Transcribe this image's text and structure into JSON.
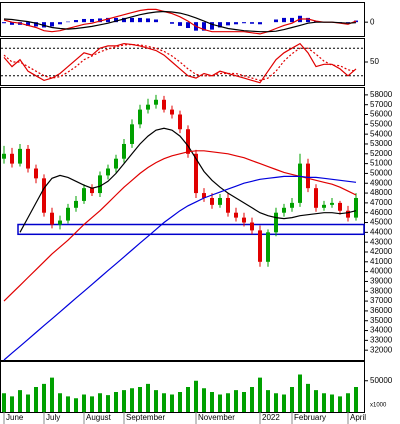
{
  "chart_data": [
    {
      "type": "macd",
      "ylim": [
        -1300,
        1800
      ],
      "yticks": [
        0
      ],
      "series": [
        {
          "name": "MACD",
          "color": "#e00000",
          "values": [
            200,
            0,
            -100,
            -300,
            -500,
            -800,
            -900,
            -800,
            -600,
            -400,
            -200,
            -100,
            100,
            300,
            500,
            700,
            900,
            1100,
            1200,
            1200,
            1000,
            800,
            500,
            100,
            -400,
            -700,
            -900,
            -900,
            -900,
            -900,
            -900,
            -1000,
            -1100,
            -900,
            -600,
            -300,
            -100,
            300,
            300,
            100,
            0,
            0,
            -100,
            -200,
            100
          ]
        },
        {
          "name": "Signal",
          "color": "#000000",
          "values": [
            300,
            250,
            150,
            50,
            -100,
            -300,
            -500,
            -600,
            -650,
            -600,
            -500,
            -400,
            -250,
            -100,
            100,
            300,
            500,
            700,
            850,
            950,
            1000,
            950,
            850,
            650,
            400,
            100,
            -200,
            -400,
            -600,
            -700,
            -800,
            -850,
            -900,
            -900,
            -850,
            -700,
            -500,
            -300,
            -100,
            0,
            0,
            0,
            -50,
            -100,
            -50
          ]
        }
      ],
      "histogram": {
        "color": "#0000cc",
        "values": [
          -100,
          -250,
          -250,
          -350,
          -400,
          -500,
          -400,
          -200,
          50,
          200,
          300,
          300,
          350,
          400,
          400,
          400,
          400,
          400,
          350,
          250,
          0,
          -150,
          -350,
          -550,
          -800,
          -800,
          -700,
          -500,
          -300,
          -200,
          -100,
          -150,
          -200,
          0,
          250,
          400,
          400,
          600,
          400,
          100,
          0,
          0,
          -50,
          -100,
          150
        ]
      }
    },
    {
      "type": "stochastic",
      "ylim": [
        0,
        100
      ],
      "yticks": [
        50
      ],
      "levels": [
        20,
        80
      ],
      "series": [
        {
          "name": "%K",
          "color": "#e00000",
          "values": [
            60,
            40,
            55,
            30,
            20,
            10,
            15,
            25,
            40,
            55,
            70,
            65,
            80,
            85,
            85,
            90,
            88,
            85,
            80,
            75,
            65,
            50,
            35,
            20,
            15,
            25,
            20,
            30,
            25,
            20,
            15,
            10,
            5,
            30,
            55,
            70,
            80,
            90,
            70,
            40,
            45,
            45,
            35,
            20,
            35
          ]
        },
        {
          "name": "%D",
          "color": "#e00000",
          "dashed": true,
          "values": [
            65,
            50,
            50,
            40,
            30,
            20,
            15,
            18,
            28,
            40,
            55,
            63,
            72,
            78,
            83,
            87,
            88,
            87,
            84,
            80,
            73,
            63,
            50,
            35,
            23,
            20,
            20,
            25,
            25,
            25,
            20,
            15,
            10,
            15,
            30,
            52,
            68,
            80,
            80,
            67,
            52,
            43,
            42,
            33,
            30
          ]
        }
      ]
    },
    {
      "type": "candlestick",
      "ylim": [
        31000,
        58700
      ],
      "yticks": [
        32000,
        33000,
        34000,
        35000,
        36000,
        37000,
        38000,
        39000,
        40000,
        41000,
        42000,
        43000,
        44000,
        45000,
        46000,
        47000,
        48000,
        49000,
        50000,
        51000,
        52000,
        53000,
        54000,
        55000,
        56000,
        57000,
        58000
      ],
      "up_color": "#00a000",
      "down_color": "#e00000",
      "open": [
        51500,
        52000,
        51000,
        52500,
        50500,
        49500,
        46000,
        44800,
        45200,
        46500,
        47200,
        48500,
        48000,
        49800,
        50500,
        51500,
        53000,
        55000,
        56500,
        57000,
        57500,
        56500,
        56000,
        54500,
        52000,
        48000,
        47500,
        46800,
        47500,
        46000,
        45500,
        45000,
        44200,
        41000,
        44000,
        46000,
        46500,
        47000,
        51000,
        48500,
        46500,
        46800,
        47000,
        46200,
        45500
      ],
      "high": [
        52800,
        52600,
        53000,
        52900,
        50900,
        49900,
        46500,
        45700,
        46900,
        47700,
        48900,
        48900,
        50200,
        50900,
        51900,
        53500,
        55500,
        57000,
        57600,
        58000,
        57900,
        56900,
        56400,
        54900,
        52400,
        48500,
        48000,
        47900,
        48000,
        46500,
        46000,
        45500,
        44700,
        44300,
        46500,
        46900,
        47500,
        52000,
        51500,
        48900,
        47200,
        47500,
        47200,
        46700,
        48000
      ],
      "low": [
        51000,
        50600,
        50700,
        50100,
        49000,
        45600,
        44400,
        44300,
        44900,
        46100,
        46900,
        47700,
        47600,
        49400,
        50100,
        51100,
        52600,
        54600,
        56100,
        56600,
        56200,
        55600,
        54100,
        51600,
        47500,
        47100,
        46400,
        46500,
        45600,
        45100,
        44600,
        43800,
        40500,
        40500,
        43600,
        45600,
        46100,
        46600,
        48100,
        46100,
        46200,
        46500,
        45800,
        45100,
        45200
      ],
      "close": [
        52000,
        51000,
        52500,
        50500,
        49500,
        46000,
        44800,
        45200,
        46500,
        47200,
        48500,
        48000,
        49800,
        50500,
        51500,
        53000,
        55000,
        56500,
        57000,
        57500,
        56500,
        56000,
        54500,
        52000,
        48000,
        47500,
        46800,
        47500,
        46000,
        45500,
        45000,
        44200,
        41000,
        44000,
        46000,
        46500,
        47000,
        51000,
        48500,
        46500,
        46800,
        47000,
        46200,
        45500,
        47500
      ],
      "series": [
        {
          "name": "MA50",
          "color": "#000000",
          "values": [
            null,
            null,
            44000,
            45500,
            47000,
            48500,
            49500,
            49800,
            49600,
            49200,
            48800,
            48500,
            48700,
            49200,
            50000,
            51000,
            52000,
            53000,
            53800,
            54400,
            54600,
            54400,
            53800,
            52800,
            51500,
            50200,
            49300,
            48600,
            48000,
            47500,
            47000,
            46500,
            46000,
            45700,
            45500,
            45400,
            45500,
            45700,
            45800,
            45900,
            46000,
            46000,
            45900,
            46000,
            46200
          ]
        },
        {
          "name": "MA100",
          "color": "#e00000",
          "values": [
            37000,
            37800,
            38600,
            39400,
            40200,
            41000,
            41800,
            42500,
            43200,
            44000,
            44800,
            45500,
            46200,
            47000,
            47800,
            48600,
            49300,
            50000,
            50600,
            51100,
            51500,
            51800,
            52000,
            52200,
            52300,
            52300,
            52200,
            52100,
            52000,
            51800,
            51600,
            51300,
            51000,
            50700,
            50400,
            50100,
            49900,
            49700,
            49500,
            49300,
            49100,
            48900,
            48600,
            48200,
            47800
          ]
        },
        {
          "name": "MA200",
          "color": "#0000dd",
          "values": [
            31000,
            31700,
            32400,
            33100,
            33800,
            34500,
            35200,
            35900,
            36600,
            37300,
            38000,
            38700,
            39400,
            40100,
            40800,
            41500,
            42200,
            42900,
            43600,
            44300,
            45000,
            45600,
            46200,
            46700,
            47100,
            47500,
            47800,
            48100,
            48400,
            48700,
            49000,
            49200,
            49400,
            49500,
            49600,
            49700,
            49700,
            49700,
            49600,
            49600,
            49500,
            49400,
            49300,
            49200,
            49100
          ]
        }
      ]
    },
    {
      "type": "volume",
      "ylim": [
        0,
        80000
      ],
      "yticks": [
        50000
      ],
      "unit": "x1000",
      "color": "#00a000",
      "values": [
        30000,
        25000,
        35000,
        28000,
        40000,
        45000,
        55000,
        30000,
        25000,
        22000,
        28000,
        25000,
        30000,
        27000,
        32000,
        35000,
        38000,
        40000,
        45000,
        35000,
        30000,
        28000,
        32000,
        40000,
        50000,
        38000,
        32000,
        28000,
        30000,
        35000,
        32000,
        40000,
        55000,
        35000,
        30000,
        28000,
        40000,
        60000,
        45000,
        35000,
        30000,
        28000,
        25000,
        30000,
        40000
      ],
      "categories": [
        "June",
        null,
        null,
        null,
        null,
        "July",
        null,
        null,
        null,
        null,
        "August",
        null,
        null,
        null,
        null,
        "September",
        null,
        null,
        null,
        null,
        null,
        null,
        null,
        null,
        "November",
        null,
        null,
        null,
        null,
        null,
        null,
        null,
        "2022",
        null,
        null,
        null,
        "February",
        null,
        null,
        null,
        null,
        null,
        null,
        "April",
        null
      ]
    }
  ]
}
